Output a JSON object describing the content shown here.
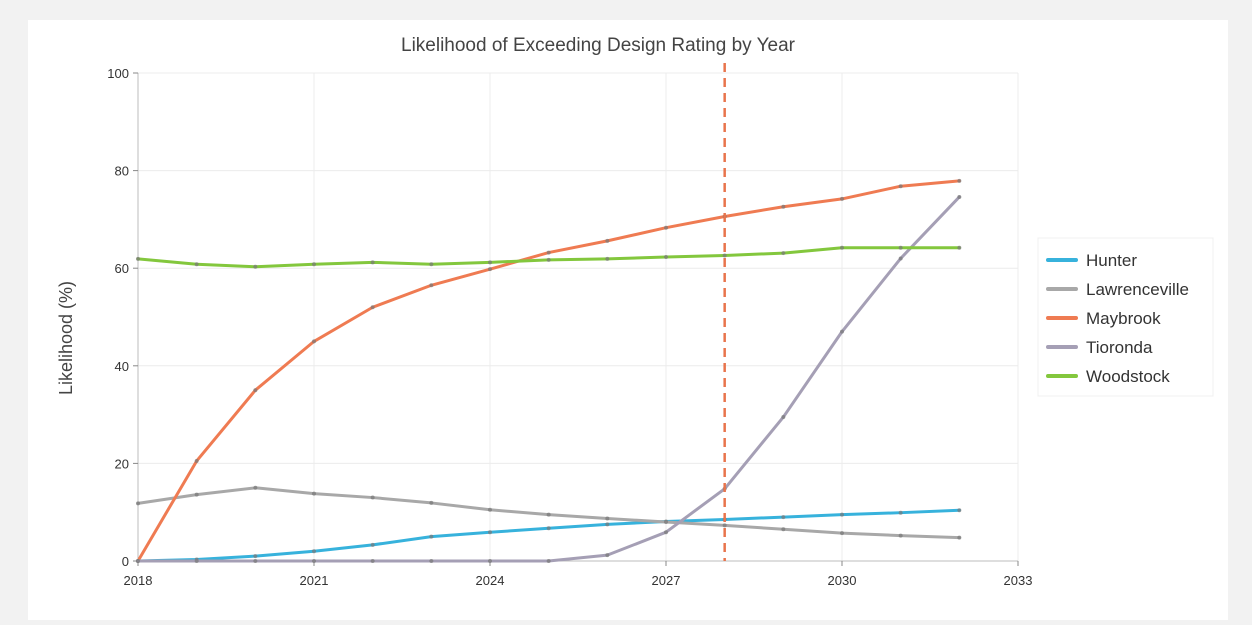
{
  "chart_data": {
    "type": "line",
    "title": "Likelihood of Exceeding Design Rating by Year",
    "xlabel": "",
    "ylabel": "Likelihood (%)",
    "xlim": [
      2018,
      2033
    ],
    "ylim": [
      0,
      100
    ],
    "x_ticks": [
      2018,
      2021,
      2024,
      2027,
      2030,
      2033
    ],
    "y_ticks": [
      0,
      20,
      40,
      60,
      80,
      100
    ],
    "grid": true,
    "legend_position": "right",
    "vertical_line": {
      "x": 2028,
      "color": "#e8744c",
      "style": "dashed"
    },
    "x": [
      2018,
      2019,
      2020,
      2021,
      2022,
      2023,
      2024,
      2025,
      2026,
      2027,
      2028,
      2029,
      2030,
      2031,
      2032
    ],
    "series": [
      {
        "name": "Hunter",
        "color": "#37b2dc",
        "values": [
          0,
          0.3,
          1,
          2,
          3.3,
          5,
          5.9,
          6.7,
          7.5,
          8.1,
          8.5,
          9,
          9.5,
          9.9,
          10.4
        ]
      },
      {
        "name": "Lawrenceville",
        "color": "#a8a8a8",
        "values": [
          11.8,
          13.6,
          15,
          13.8,
          13,
          11.9,
          10.5,
          9.5,
          8.7,
          8,
          7.3,
          6.5,
          5.7,
          5.2,
          4.8
        ]
      },
      {
        "name": "Maybrook",
        "color": "#ef7b52",
        "values": [
          0,
          20.5,
          35,
          45,
          52,
          56.5,
          59.8,
          63.2,
          65.6,
          68.3,
          70.6,
          72.6,
          74.2,
          76.8,
          77.9
        ]
      },
      {
        "name": "Tioronda",
        "color": "#a59fb5",
        "values": [
          0,
          0,
          0,
          0,
          0,
          0,
          0,
          0,
          1.2,
          5.9,
          14.8,
          29.5,
          47,
          62,
          74.6
        ]
      },
      {
        "name": "Woodstock",
        "color": "#83c73d",
        "values": [
          61.9,
          60.8,
          60.3,
          60.8,
          61.2,
          60.8,
          61.2,
          61.7,
          61.9,
          62.3,
          62.6,
          63.1,
          64.2,
          64.2,
          64.2
        ]
      }
    ]
  }
}
